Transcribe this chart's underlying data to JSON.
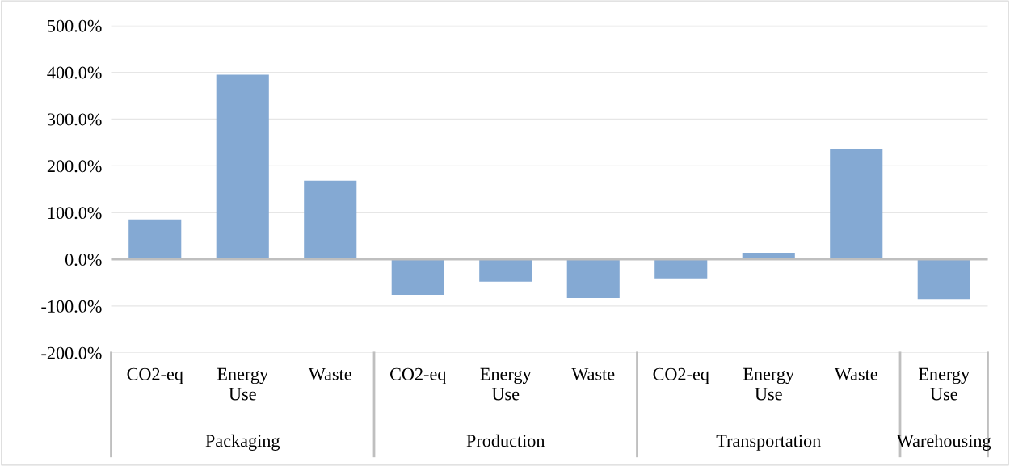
{
  "chart_data": {
    "type": "bar",
    "categories": [
      "CO2-eq",
      "Energy\nUse",
      "Waste",
      "CO2-eq",
      "Energy\nUse",
      "Waste",
      "CO2-eq",
      "Energy\nUse",
      "Waste",
      "Energy\nUse"
    ],
    "values": [
      85,
      395,
      168,
      -76,
      -48,
      -83,
      -41,
      14,
      237,
      -85
    ],
    "color": "#84a9d3",
    "ylim": [
      -200,
      500
    ],
    "yticks": [
      {
        "value": -200,
        "label": "-200.0%"
      },
      {
        "value": -100,
        "label": "-100.0%"
      },
      {
        "value": 0,
        "label": "0.0%"
      },
      {
        "value": 100,
        "label": "100.0%"
      },
      {
        "value": 200,
        "label": "200.0%"
      },
      {
        "value": 300,
        "label": "300.0%"
      },
      {
        "value": 400,
        "label": "400.0%"
      },
      {
        "value": 500,
        "label": "500.0%"
      }
    ],
    "grid": "y",
    "annotations": [
      "Packaging",
      "Production",
      "Transportation",
      "Warehousing"
    ]
  }
}
